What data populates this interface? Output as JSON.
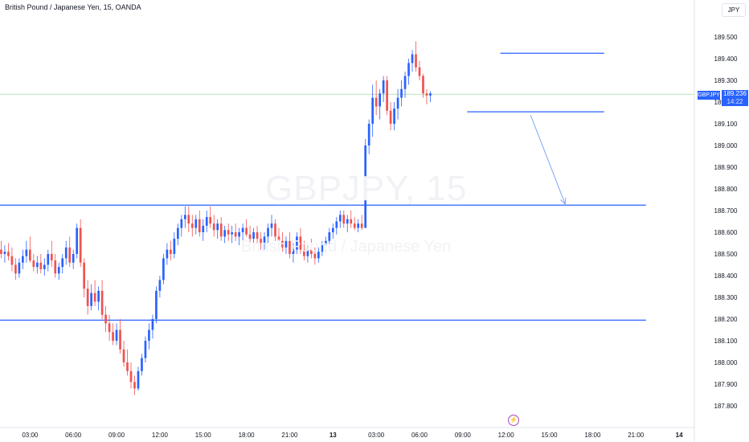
{
  "header": {
    "title": "British Pound / Japanese Yen, 15, OANDA",
    "currency": "JPY"
  },
  "watermark": {
    "symbol": "GBPJPY, 15",
    "description": "British Pound / Japanese Yen"
  },
  "price_tag": {
    "symbol": "GBPJPY",
    "price": "189.236",
    "countdown": "14:22"
  },
  "alert_icon": "lightning-icon",
  "colors": {
    "up": "#2962ff",
    "down": "#f05350",
    "level_line": "#2962ff",
    "current_price_line": "#a5d6a7",
    "arrow": "#7fa6f5",
    "axis_text": "#131722"
  },
  "chart_data": {
    "type": "candlestick",
    "title": "British Pound / Japanese Yen, 15, OANDA",
    "ylim": [
      187.75,
      189.6
    ],
    "y_ticks": [
      189.5,
      189.4,
      189.3,
      189.2,
      189.1,
      189.0,
      188.9,
      188.8,
      188.7,
      188.6,
      188.5,
      188.4,
      188.3,
      188.2,
      188.1,
      188.0,
      187.9,
      187.8
    ],
    "x_ticks": [
      {
        "label": "03:00",
        "hour": 3
      },
      {
        "label": "06:00",
        "hour": 6
      },
      {
        "label": "09:00",
        "hour": 9
      },
      {
        "label": "12:00",
        "hour": 12
      },
      {
        "label": "15:00",
        "hour": 15
      },
      {
        "label": "18:00",
        "hour": 18
      },
      {
        "label": "21:00",
        "hour": 21
      },
      {
        "label": "13",
        "hour": 24
      },
      {
        "label": "03:00",
        "hour": 27
      },
      {
        "label": "06:00",
        "hour": 30
      },
      {
        "label": "09:00",
        "hour": 33
      },
      {
        "label": "12:00",
        "hour": 36
      },
      {
        "label": "15:00",
        "hour": 39
      },
      {
        "label": "18:00",
        "hour": 42
      },
      {
        "label": "21:00",
        "hour": 45
      },
      {
        "label": "14",
        "hour": 48
      }
    ],
    "start_hour": 0.75,
    "interval_minutes": 15,
    "current_price": 189.236,
    "levels": [
      {
        "price": 189.425,
        "from_hour": 35.6,
        "to_hour": 42.8
      },
      {
        "price": 189.155,
        "from_hour": 33.3,
        "to_hour": 42.8
      },
      {
        "price": 188.725,
        "from_hour": 0.0,
        "to_hour": 45.7
      },
      {
        "price": 188.195,
        "from_hour": 0.0,
        "to_hour": 45.7
      }
    ],
    "projection_arrow": {
      "from_hour": 37.7,
      "from_price": 189.14,
      "to_hour": 40.1,
      "to_price": 188.73
    },
    "ohlc": [
      [
        188.58,
        188.62,
        188.5,
        188.52
      ],
      [
        188.52,
        188.56,
        188.48,
        188.5
      ],
      [
        188.5,
        188.54,
        188.46,
        188.51
      ],
      [
        188.51,
        188.55,
        188.47,
        188.49
      ],
      [
        188.49,
        188.53,
        188.42,
        188.45
      ],
      [
        188.45,
        188.48,
        188.38,
        188.41
      ],
      [
        188.41,
        188.48,
        188.39,
        188.46
      ],
      [
        188.46,
        188.52,
        188.43,
        188.49
      ],
      [
        188.49,
        188.56,
        188.46,
        188.52
      ],
      [
        188.52,
        188.58,
        188.46,
        188.47
      ],
      [
        188.47,
        188.5,
        188.42,
        188.44
      ],
      [
        188.44,
        188.49,
        188.41,
        188.46
      ],
      [
        188.46,
        188.5,
        188.41,
        188.43
      ],
      [
        188.43,
        188.48,
        188.4,
        188.45
      ],
      [
        188.45,
        188.52,
        188.42,
        188.5
      ],
      [
        188.5,
        188.56,
        188.44,
        188.47
      ],
      [
        188.47,
        188.5,
        188.39,
        188.41
      ],
      [
        188.41,
        188.46,
        188.38,
        188.44
      ],
      [
        188.44,
        188.5,
        188.41,
        188.48
      ],
      [
        188.48,
        188.56,
        188.45,
        188.53
      ],
      [
        188.53,
        188.58,
        188.44,
        188.46
      ],
      [
        188.46,
        188.52,
        188.43,
        188.5
      ],
      [
        188.5,
        188.64,
        188.48,
        188.62
      ],
      [
        188.62,
        188.66,
        188.44,
        188.46
      ],
      [
        188.46,
        188.48,
        188.3,
        188.34
      ],
      [
        188.34,
        188.38,
        188.22,
        188.26
      ],
      [
        188.26,
        188.36,
        188.24,
        188.32
      ],
      [
        188.32,
        188.38,
        188.26,
        188.28
      ],
      [
        188.28,
        188.35,
        188.24,
        188.33
      ],
      [
        188.33,
        188.38,
        188.2,
        188.22
      ],
      [
        188.22,
        188.26,
        188.14,
        188.18
      ],
      [
        188.18,
        188.22,
        188.1,
        188.14
      ],
      [
        188.14,
        188.18,
        188.08,
        188.1
      ],
      [
        188.1,
        188.18,
        188.08,
        188.15
      ],
      [
        188.15,
        188.2,
        188.04,
        188.06
      ],
      [
        188.06,
        188.1,
        187.98,
        188.0
      ],
      [
        188.0,
        188.06,
        187.94,
        187.96
      ],
      [
        187.96,
        188.0,
        187.88,
        187.91
      ],
      [
        187.91,
        187.94,
        187.85,
        187.88
      ],
      [
        187.88,
        187.98,
        187.87,
        187.96
      ],
      [
        187.96,
        188.04,
        187.94,
        188.02
      ],
      [
        188.02,
        188.12,
        188.0,
        188.1
      ],
      [
        188.1,
        188.18,
        188.06,
        188.15
      ],
      [
        188.15,
        188.22,
        188.11,
        188.2
      ],
      [
        188.2,
        188.35,
        188.18,
        188.33
      ],
      [
        188.33,
        188.4,
        188.3,
        188.38
      ],
      [
        188.38,
        188.5,
        188.36,
        188.48
      ],
      [
        188.48,
        188.55,
        188.45,
        188.52
      ],
      [
        188.52,
        188.56,
        188.47,
        188.5
      ],
      [
        188.5,
        188.6,
        188.48,
        188.57
      ],
      [
        188.57,
        188.64,
        188.54,
        188.62
      ],
      [
        188.62,
        188.68,
        188.58,
        188.66
      ],
      [
        188.66,
        188.72,
        188.62,
        188.68
      ],
      [
        188.68,
        188.72,
        188.6,
        188.64
      ],
      [
        188.64,
        188.68,
        188.58,
        188.62
      ],
      [
        188.62,
        188.68,
        188.59,
        188.66
      ],
      [
        188.66,
        188.7,
        188.58,
        188.6
      ],
      [
        188.6,
        188.66,
        188.56,
        188.63
      ],
      [
        188.63,
        188.7,
        188.6,
        188.67
      ],
      [
        188.67,
        188.72,
        188.62,
        188.64
      ],
      [
        188.64,
        188.68,
        188.58,
        188.61
      ],
      [
        188.61,
        188.66,
        188.57,
        188.64
      ],
      [
        188.64,
        188.67,
        188.56,
        188.58
      ],
      [
        188.58,
        188.63,
        188.55,
        188.61
      ],
      [
        188.61,
        188.64,
        188.56,
        188.59
      ],
      [
        188.59,
        188.63,
        188.55,
        188.6
      ],
      [
        188.6,
        188.64,
        188.56,
        188.58
      ],
      [
        188.58,
        188.62,
        188.54,
        188.6
      ],
      [
        188.6,
        188.64,
        188.56,
        188.62
      ],
      [
        188.62,
        188.66,
        188.58,
        188.59
      ],
      [
        188.59,
        188.63,
        188.55,
        188.57
      ],
      [
        188.57,
        188.62,
        188.54,
        188.6
      ],
      [
        188.6,
        188.63,
        188.55,
        188.57
      ],
      [
        188.57,
        188.6,
        188.52,
        188.55
      ],
      [
        188.55,
        188.6,
        188.52,
        188.58
      ],
      [
        188.58,
        188.64,
        188.55,
        188.62
      ],
      [
        188.62,
        188.68,
        188.58,
        188.64
      ],
      [
        188.64,
        188.66,
        188.56,
        188.58
      ],
      [
        188.58,
        188.62,
        188.54,
        188.56
      ],
      [
        188.56,
        188.6,
        188.51,
        188.53
      ],
      [
        188.53,
        188.58,
        188.5,
        188.56
      ],
      [
        188.56,
        188.6,
        188.48,
        188.5
      ],
      [
        188.5,
        188.55,
        188.46,
        188.52
      ],
      [
        188.52,
        188.6,
        188.5,
        188.58
      ],
      [
        188.58,
        188.62,
        188.5,
        188.52
      ],
      [
        188.52,
        188.56,
        188.47,
        188.49
      ],
      [
        188.49,
        188.54,
        188.46,
        188.52
      ],
      [
        188.52,
        188.57,
        188.48,
        188.5
      ],
      [
        188.5,
        188.53,
        188.45,
        188.48
      ],
      [
        188.48,
        188.53,
        188.46,
        188.51
      ],
      [
        188.51,
        188.56,
        188.49,
        188.54
      ],
      [
        188.54,
        188.58,
        188.51,
        188.56
      ],
      [
        188.56,
        188.62,
        188.54,
        188.6
      ],
      [
        188.6,
        188.64,
        188.57,
        188.62
      ],
      [
        188.62,
        188.67,
        188.59,
        188.65
      ],
      [
        188.65,
        188.7,
        188.62,
        188.68
      ],
      [
        188.68,
        188.7,
        188.62,
        188.64
      ],
      [
        188.64,
        188.68,
        188.6,
        188.66
      ],
      [
        188.66,
        188.7,
        188.62,
        188.64
      ],
      [
        188.64,
        188.67,
        188.61,
        188.62
      ],
      [
        188.62,
        188.66,
        188.6,
        188.64
      ],
      [
        188.64,
        188.68,
        188.61,
        188.62
      ],
      [
        188.62,
        189.03,
        188.62,
        189.0
      ],
      [
        189.0,
        189.12,
        188.96,
        189.1
      ],
      [
        189.1,
        189.28,
        189.04,
        189.22
      ],
      [
        189.22,
        189.3,
        189.14,
        189.18
      ],
      [
        189.18,
        189.26,
        189.12,
        189.24
      ],
      [
        189.24,
        189.32,
        189.2,
        189.3
      ],
      [
        189.3,
        189.32,
        189.14,
        189.16
      ],
      [
        189.16,
        189.2,
        189.07,
        189.1
      ],
      [
        189.1,
        189.2,
        189.07,
        189.17
      ],
      [
        189.17,
        189.26,
        189.12,
        189.22
      ],
      [
        189.22,
        189.3,
        189.18,
        189.26
      ],
      [
        189.26,
        189.34,
        189.22,
        189.32
      ],
      [
        189.32,
        189.4,
        189.28,
        189.38
      ],
      [
        189.38,
        189.44,
        189.34,
        189.42
      ],
      [
        189.42,
        189.48,
        189.34,
        189.36
      ],
      [
        189.36,
        189.39,
        189.3,
        189.32
      ],
      [
        189.32,
        189.33,
        189.22,
        189.24
      ],
      [
        189.24,
        189.26,
        189.19,
        189.23
      ],
      [
        189.23,
        189.25,
        189.2,
        189.24
      ]
    ]
  }
}
